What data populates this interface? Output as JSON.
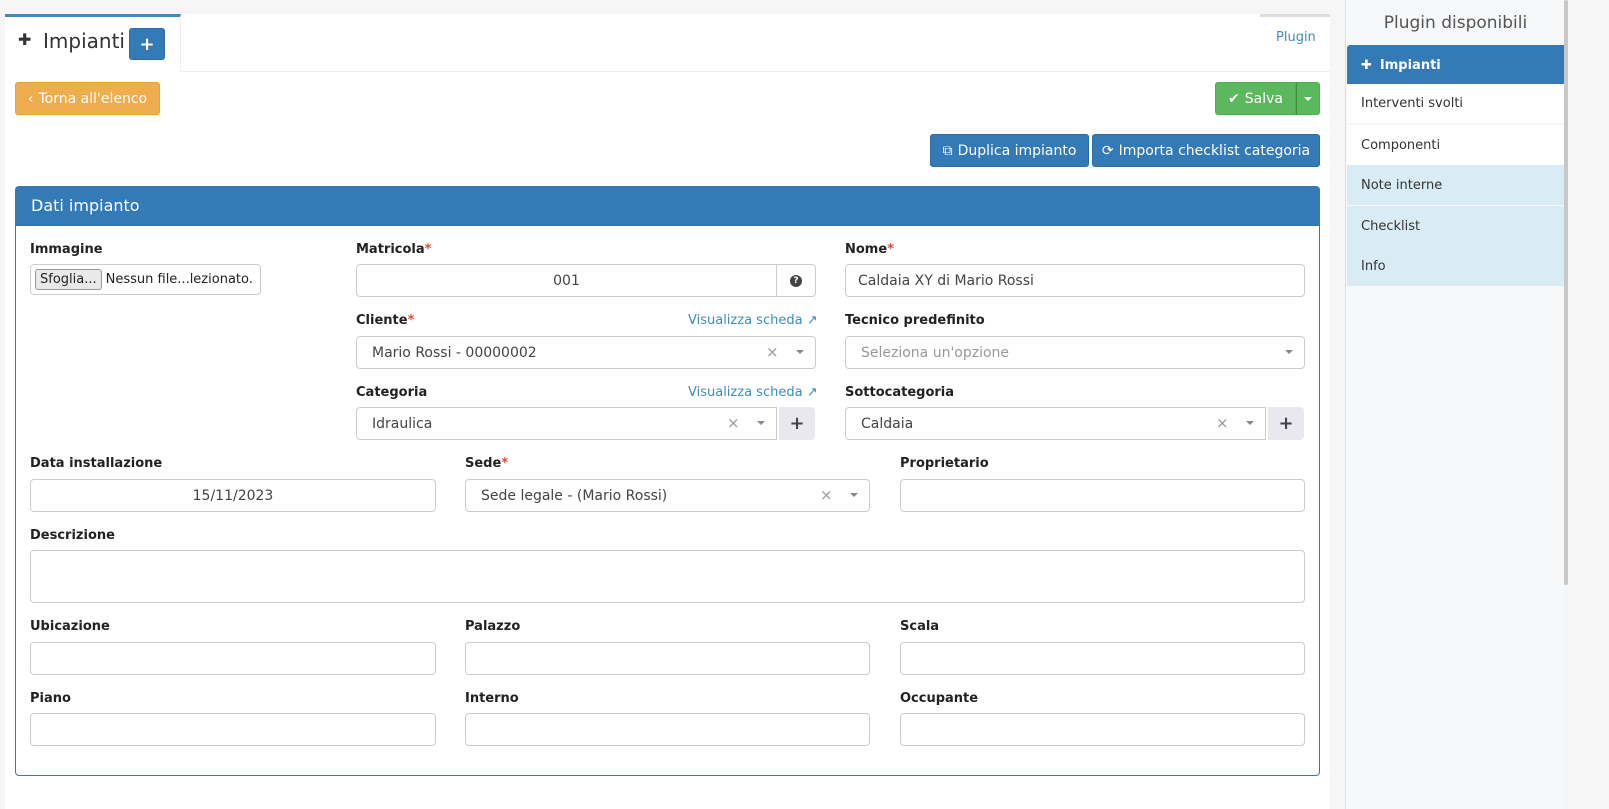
{
  "tab": {
    "title": "Impianti",
    "add": "+",
    "plugin_link": "Plugin"
  },
  "toolbar": {
    "back": "Torna all'elenco",
    "save": "Salva",
    "duplicate": "Duplica impianto",
    "import": "Importa checklist categoria"
  },
  "panel": {
    "title": "Dati impianto"
  },
  "form": {
    "immagine": {
      "label": "Immagine",
      "button": "Sfoglia...",
      "status": "Nessun file...lezionato."
    },
    "matricola": {
      "label": "Matricola",
      "value": "001"
    },
    "nome": {
      "label": "Nome",
      "value": "Caldaia XY di Mario Rossi"
    },
    "cliente": {
      "label": "Cliente",
      "value": "Mario Rossi - 00000002",
      "link": "Visualizza scheda"
    },
    "tecnico": {
      "label": "Tecnico predefinito",
      "placeholder": "Seleziona un'opzione"
    },
    "categoria": {
      "label": "Categoria",
      "value": "Idraulica",
      "link": "Visualizza scheda"
    },
    "sottocategoria": {
      "label": "Sottocategoria",
      "value": "Caldaia"
    },
    "data_installazione": {
      "label": "Data installazione",
      "value": "15/11/2023"
    },
    "sede": {
      "label": "Sede",
      "value": "Sede legale - (Mario Rossi)"
    },
    "proprietario": {
      "label": "Proprietario",
      "value": ""
    },
    "descrizione": {
      "label": "Descrizione",
      "value": ""
    },
    "ubicazione": {
      "label": "Ubicazione"
    },
    "palazzo": {
      "label": "Palazzo"
    },
    "scala": {
      "label": "Scala"
    },
    "piano": {
      "label": "Piano"
    },
    "interno": {
      "label": "Interno"
    },
    "occupante": {
      "label": "Occupante"
    },
    "required_mark": "*"
  },
  "sidebar": {
    "title": "Plugin disponibili",
    "items": [
      {
        "label": "Impianti"
      },
      {
        "label": "Interventi svolti"
      },
      {
        "label": "Componenti"
      },
      {
        "label": "Note interne"
      },
      {
        "label": "Checklist"
      },
      {
        "label": "Info"
      }
    ]
  },
  "colors": {
    "primary": "#337ab7",
    "success": "#5cb85c",
    "warning": "#f0ad4e",
    "info_bg": "#d9ecf5"
  }
}
